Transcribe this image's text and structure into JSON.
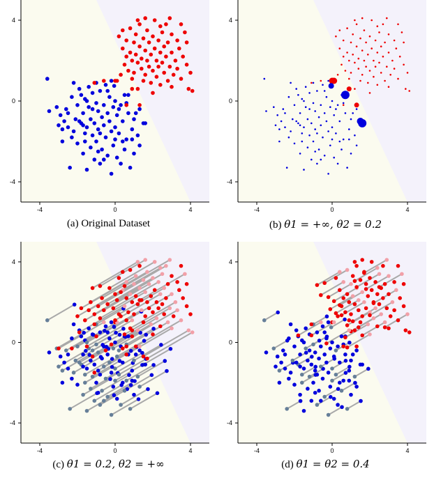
{
  "colors": {
    "region_class_0": "#fbfbef",
    "region_class_1": "#f4f2fb",
    "class_0": "#0000dd",
    "class_1": "#ee0000",
    "class_0_shifted": "#667f99",
    "class_1_shifted": "#f2a0a8",
    "line": "#a9a9a9"
  },
  "chart_data": [
    {
      "type": "scatter",
      "caption": "(a) Original Dataset",
      "caption_prefix": "(a) Original Dataset",
      "caption_math": "",
      "xlim": [
        -5,
        5
      ],
      "ylim": [
        -5,
        5
      ],
      "xticks": [
        -4,
        0,
        4
      ],
      "yticks": [
        -4,
        0,
        4
      ],
      "xtick_labels": [
        "-4",
        "0",
        "4"
      ],
      "ytick_labels": [
        "-4",
        "0",
        "4"
      ],
      "decision_boundary": {
        "through": [
          [
            -1.0,
            5.0
          ],
          [
            4.0,
            -5.0
          ]
        ]
      },
      "point_style": "uniform",
      "shifts": "none"
    },
    {
      "type": "scatter",
      "caption": "(b) θ1 = +∞, θ2 = 0.2",
      "caption_prefix": "(b) ",
      "caption_math": "θ1 = +∞, θ2 = 0.2",
      "xlim": [
        -5,
        5
      ],
      "ylim": [
        -5,
        5
      ],
      "xticks": [
        -4,
        0,
        4
      ],
      "yticks": [
        -4,
        0,
        4
      ],
      "xtick_labels": [
        "-4",
        "0",
        "4"
      ],
      "ytick_labels": [
        "-4",
        "0",
        "4"
      ],
      "decision_boundary": {
        "through": [
          [
            -1.0,
            5.0
          ],
          [
            4.0,
            -5.0
          ]
        ]
      },
      "point_style": "weighted",
      "large_points": [
        {
          "x": 0.7,
          "y": 0.3,
          "class": 0,
          "size": 6
        },
        {
          "x": 1.6,
          "y": -1.1,
          "class": 0,
          "size": 6
        },
        {
          "x": 1.5,
          "y": -1.0,
          "class": 0,
          "size": 5
        },
        {
          "x": 0.0,
          "y": 1.0,
          "class": 1,
          "size": 4.5
        },
        {
          "x": 0.1,
          "y": 1.0,
          "class": 1,
          "size": 4.5
        },
        {
          "x": -0.05,
          "y": 0.75,
          "class": 0,
          "size": 4
        },
        {
          "x": 1.3,
          "y": -0.2,
          "class": 1,
          "size": 3.5
        },
        {
          "x": 0.9,
          "y": 0.6,
          "class": 1,
          "size": 3.5
        }
      ],
      "shifts": "none"
    },
    {
      "type": "scatter",
      "caption": "(c) θ1 = 0.2, θ2 = +∞",
      "caption_prefix": "(c) ",
      "caption_math": "θ1 = 0.2, θ2 = +∞",
      "xlim": [
        -5,
        5
      ],
      "ylim": [
        -5,
        5
      ],
      "xticks": [
        -4,
        0,
        4
      ],
      "yticks": [
        -4,
        0,
        4
      ],
      "xtick_labels": [
        "-4",
        "0",
        "4"
      ],
      "ytick_labels": [
        "-4",
        "0",
        "4"
      ],
      "decision_boundary": {
        "through": [
          [
            -1.0,
            5.0
          ],
          [
            4.0,
            -5.0
          ]
        ]
      },
      "point_style": "uniform",
      "shifts": "many",
      "shift_vector": [
        -2.4,
        -1.3
      ]
    },
    {
      "type": "scatter",
      "caption": "(d) θ1 = θ2 = 0.4",
      "caption_prefix": "(d) ",
      "caption_math": "θ1 = θ2 = 0.4",
      "xlim": [
        -5,
        5
      ],
      "ylim": [
        -5,
        5
      ],
      "xticks": [
        -4,
        0,
        4
      ],
      "yticks": [
        -4,
        0,
        4
      ],
      "xtick_labels": [
        "-4",
        "0",
        "4"
      ],
      "ytick_labels": [
        "-4",
        "0",
        "4"
      ],
      "decision_boundary": {
        "through": [
          [
            -1.0,
            5.0
          ],
          [
            4.0,
            -5.0
          ]
        ]
      },
      "point_style": "uniform",
      "shifts": "some",
      "shift_vector": [
        -1.2,
        -0.65
      ]
    }
  ],
  "dataset": {
    "class_0": [
      [
        -3.6,
        1.1
      ],
      [
        -3.5,
        -0.5
      ],
      [
        -3.0,
        -1.2
      ],
      [
        -2.9,
        -0.7
      ],
      [
        -2.8,
        -1.4
      ],
      [
        -2.7,
        -1.0
      ],
      [
        -2.6,
        -0.4
      ],
      [
        -2.5,
        -1.3
      ],
      [
        -2.4,
        -3.3
      ],
      [
        -2.3,
        -1.8
      ],
      [
        -2.2,
        -1.5
      ],
      [
        -2.2,
        0.9
      ],
      [
        -2.1,
        -0.9
      ],
      [
        -2.0,
        -2.1
      ],
      [
        -2.0,
        -0.2
      ],
      [
        -1.9,
        0.6
      ],
      [
        -1.8,
        -1.1
      ],
      [
        -1.8,
        0.3
      ],
      [
        -1.7,
        -2.6
      ],
      [
        -1.7,
        -0.6
      ],
      [
        -1.6,
        -1.6
      ],
      [
        -1.6,
        0.1
      ],
      [
        -1.5,
        -3.4
      ],
      [
        -1.5,
        -1.3
      ],
      [
        -1.4,
        -0.3
      ],
      [
        -1.4,
        0.7
      ],
      [
        -1.3,
        -2.3
      ],
      [
        -1.3,
        -0.9
      ],
      [
        -1.2,
        -1.7
      ],
      [
        -1.2,
        0.4
      ],
      [
        -1.1,
        -2.9
      ],
      [
        -1.1,
        -1.1
      ],
      [
        -1.0,
        -0.1
      ],
      [
        -1.0,
        -2.0
      ],
      [
        -0.9,
        -0.5
      ],
      [
        -0.9,
        -1.4
      ],
      [
        -0.8,
        -3.1
      ],
      [
        -0.8,
        0.5
      ],
      [
        -0.7,
        -2.4
      ],
      [
        -0.7,
        -0.8
      ],
      [
        -0.6,
        -1.2
      ],
      [
        -0.6,
        -0.2
      ],
      [
        -0.5,
        -1.8
      ],
      [
        -0.5,
        0.8
      ],
      [
        -0.4,
        -2.7
      ],
      [
        -0.4,
        -0.6
      ],
      [
        -0.3,
        -1.0
      ],
      [
        -0.3,
        0.2
      ],
      [
        -0.2,
        -3.6
      ],
      [
        -0.2,
        -1.5
      ],
      [
        -0.1,
        -0.3
      ],
      [
        -0.1,
        -2.2
      ],
      [
        0.0,
        -1.3
      ],
      [
        0.0,
        0.0
      ],
      [
        0.1,
        -0.7
      ],
      [
        0.1,
        -2.8
      ],
      [
        0.2,
        -1.6
      ],
      [
        0.3,
        -0.2
      ],
      [
        0.3,
        -3.1
      ],
      [
        0.4,
        -1.0
      ],
      [
        0.5,
        -2.4
      ],
      [
        0.5,
        0.3
      ],
      [
        0.6,
        -1.9
      ],
      [
        0.7,
        -0.6
      ],
      [
        0.8,
        -3.3
      ],
      [
        0.9,
        -1.4
      ],
      [
        1.0,
        -0.9
      ],
      [
        1.0,
        -2.6
      ],
      [
        1.2,
        -1.7
      ],
      [
        1.3,
        -0.4
      ],
      [
        1.5,
        -1.1
      ],
      [
        1.6,
        -1.1
      ],
      [
        -0.05,
        0.75
      ],
      [
        0.7,
        0.3
      ],
      [
        -1.9,
        -1.0
      ],
      [
        -2.5,
        -0.6
      ],
      [
        -1.6,
        -2.0
      ],
      [
        -0.8,
        -1.6
      ],
      [
        -1.2,
        -0.4
      ],
      [
        -0.4,
        0.5
      ],
      [
        0.2,
        -0.4
      ],
      [
        -2.8,
        -2.0
      ],
      [
        -0.6,
        -2.9
      ],
      [
        0.4,
        -2.0
      ],
      [
        -1.0,
        0.9
      ],
      [
        -0.2,
        1.0
      ],
      [
        0.6,
        -0.1
      ],
      [
        1.1,
        -0.6
      ],
      [
        -3.1,
        -0.3
      ],
      [
        -2.3,
        0.2
      ],
      [
        -1.5,
        0.0
      ],
      [
        -0.9,
        -2.5
      ],
      [
        0.0,
        -1.9
      ],
      [
        0.9,
        -1.9
      ],
      [
        1.3,
        -2.2
      ],
      [
        -1.7,
        -1.2
      ]
    ],
    "class_1": [
      [
        0.0,
        1.0
      ],
      [
        0.1,
        1.0
      ],
      [
        0.3,
        1.3
      ],
      [
        0.4,
        2.6
      ],
      [
        0.4,
        3.5
      ],
      [
        0.5,
        1.8
      ],
      [
        0.6,
        2.2
      ],
      [
        0.6,
        3.0
      ],
      [
        0.7,
        1.5
      ],
      [
        0.8,
        2.4
      ],
      [
        0.8,
        3.6
      ],
      [
        0.9,
        1.1
      ],
      [
        0.9,
        2.0
      ],
      [
        1.0,
        2.9
      ],
      [
        1.0,
        1.4
      ],
      [
        1.1,
        3.3
      ],
      [
        1.1,
        2.3
      ],
      [
        1.2,
        0.6
      ],
      [
        1.2,
        1.9
      ],
      [
        1.3,
        2.7
      ],
      [
        1.3,
        3.8
      ],
      [
        1.4,
        1.6
      ],
      [
        1.4,
        2.1
      ],
      [
        1.5,
        3.1
      ],
      [
        1.5,
        1.0
      ],
      [
        1.6,
        2.5
      ],
      [
        1.6,
        1.3
      ],
      [
        1.7,
        3.5
      ],
      [
        1.7,
        2.0
      ],
      [
        1.8,
        2.9
      ],
      [
        1.8,
        1.7
      ],
      [
        1.9,
        0.9
      ],
      [
        1.9,
        2.3
      ],
      [
        2.0,
        3.2
      ],
      [
        2.0,
        1.5
      ],
      [
        2.1,
        4.0
      ],
      [
        2.1,
        2.6
      ],
      [
        2.2,
        1.2
      ],
      [
        2.2,
        2.0
      ],
      [
        2.3,
        3.0
      ],
      [
        2.3,
        1.7
      ],
      [
        2.4,
        2.4
      ],
      [
        2.4,
        0.8
      ],
      [
        2.5,
        3.4
      ],
      [
        2.5,
        1.9
      ],
      [
        2.6,
        2.7
      ],
      [
        2.6,
        1.4
      ],
      [
        2.7,
        3.8
      ],
      [
        2.7,
        2.2
      ],
      [
        2.8,
        1.0
      ],
      [
        2.8,
        2.9
      ],
      [
        2.9,
        1.7
      ],
      [
        3.0,
        3.3
      ],
      [
        3.0,
        2.4
      ],
      [
        3.1,
        1.3
      ],
      [
        3.2,
        2.0
      ],
      [
        3.3,
        3.0
      ],
      [
        3.3,
        1.6
      ],
      [
        3.4,
        2.6
      ],
      [
        3.5,
        1.1
      ],
      [
        3.6,
        2.2
      ],
      [
        3.7,
        3.4
      ],
      [
        3.8,
        1.8
      ],
      [
        3.9,
        0.6
      ],
      [
        4.0,
        1.4
      ],
      [
        4.1,
        0.5
      ],
      [
        -1.1,
        0.9
      ],
      [
        -0.6,
        1.0
      ],
      [
        0.6,
        -0.2
      ],
      [
        1.3,
        -0.2
      ],
      [
        0.9,
        0.6
      ],
      [
        1.2,
        4.0
      ],
      [
        0.2,
        3.2
      ],
      [
        2.4,
        3.7
      ],
      [
        3.5,
        3.8
      ],
      [
        3.0,
        0.7
      ],
      [
        2.0,
        0.4
      ],
      [
        1.6,
        4.1
      ],
      [
        3.8,
        2.9
      ],
      [
        2.9,
        4.1
      ]
    ]
  }
}
